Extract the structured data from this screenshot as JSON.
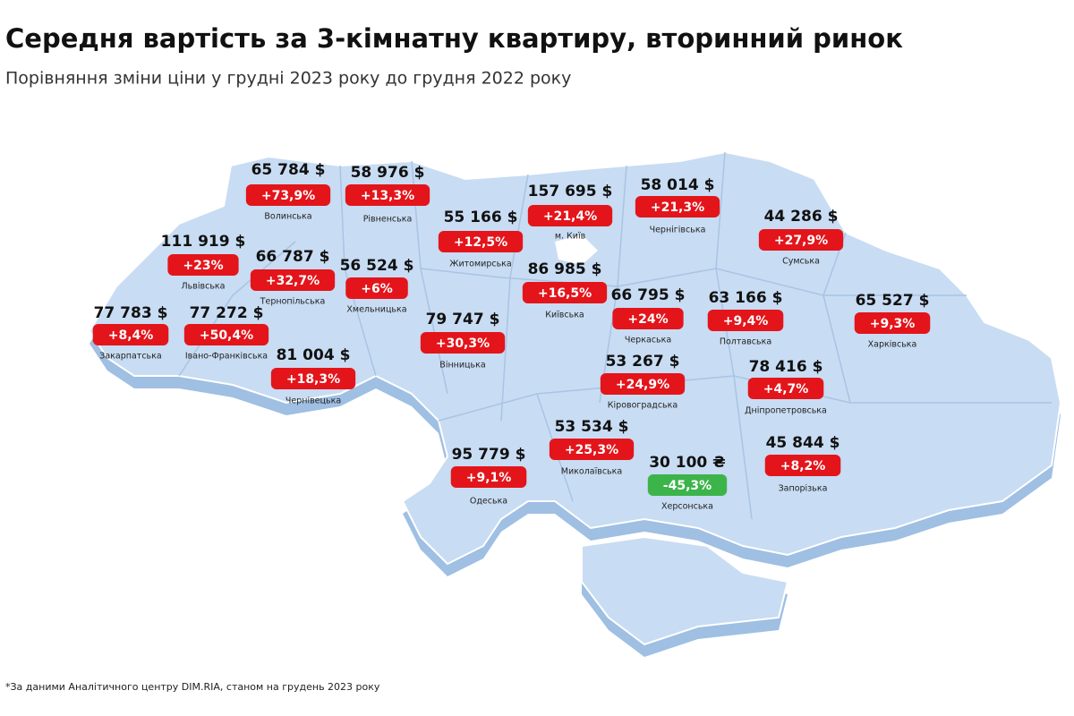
{
  "header": {
    "title": "Середня вартість за 3-кімнатну квартиру, вторинний ринок",
    "subtitle": "Порівняння зміни ціни у грудні 2023 року до грудня 2022 року"
  },
  "regions": [
    {
      "name": "Волинська",
      "price": "65 784 $",
      "change": "+73,9%"
    },
    {
      "name": "Рівненська",
      "price": "58 976 $",
      "change": "+13,3%"
    },
    {
      "name": "Львівська",
      "price": "111 919 $",
      "change": "+23%"
    },
    {
      "name": "Тернопільська",
      "price": "66 787 $",
      "change": "+32,7%"
    },
    {
      "name": "Хмельницька",
      "price": "56 524 $",
      "change": "+6%"
    },
    {
      "name": "Житомирська",
      "price": "55 166 $",
      "change": "+12,5%"
    },
    {
      "name": "м. Київ",
      "price": "157 695 $",
      "change": "+21,4%"
    },
    {
      "name": "Київська",
      "price": "86 985 $",
      "change": "+16,5%"
    },
    {
      "name": "Чернігівська",
      "price": "58 014 $",
      "change": "+21,3%"
    },
    {
      "name": "Сумська",
      "price": "44 286 $",
      "change": "+27,9%"
    },
    {
      "name": "Закарпатська",
      "price": "77 783 $",
      "change": "+8,4%"
    },
    {
      "name": "Івано-Франківська",
      "price": "77 272 $",
      "change": "+50,4%"
    },
    {
      "name": "Чернівецька",
      "price": "81 004 $",
      "change": "+18,3%"
    },
    {
      "name": "Вінницька",
      "price": "79 747 $",
      "change": "+30,3%"
    },
    {
      "name": "Черкаська",
      "price": "66 795 $",
      "change": "+24%"
    },
    {
      "name": "Полтавська",
      "price": "63 166 $",
      "change": "+9,4%"
    },
    {
      "name": "Харківська",
      "price": "65 527 $",
      "change": "+9,3%"
    },
    {
      "name": "Кіровоградська",
      "price": "53 267 $",
      "change": "+24,9%"
    },
    {
      "name": "Дніпропетровська",
      "price": "78 416 $",
      "change": "+4,7%"
    },
    {
      "name": "Миколаївська",
      "price": "53 534 $",
      "change": "+25,3%"
    },
    {
      "name": "Одеська",
      "price": "95 779 $",
      "change": "+9,1%"
    },
    {
      "name": "Херсонська",
      "price": "30 100 ₴",
      "change": "-45,3%"
    },
    {
      "name": "Запорізька",
      "price": "45 844 $",
      "change": "+8,2%"
    }
  ],
  "footnote": "*За даними Аналітичного центру DIM.RIA, станом на грудень 2023 року"
}
